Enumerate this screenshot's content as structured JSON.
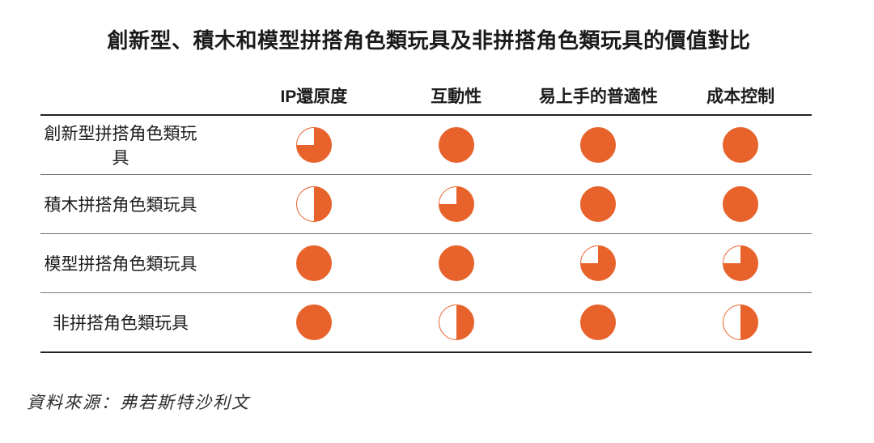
{
  "chart_data": {
    "type": "table",
    "title": "創新型、積木和模型拼搭角色類玩具及非拼搭角色類玩具的價值對比",
    "columns": [
      "IP還原度",
      "互動性",
      "易上手的普適性",
      "成本控制"
    ],
    "rows": [
      {
        "label": "創新型拼搭角色類玩具",
        "values": [
          0.75,
          1,
          1,
          1
        ]
      },
      {
        "label": "積木拼搭角色類玩具",
        "values": [
          0.5,
          0.75,
          1,
          1
        ]
      },
      {
        "label": "模型拼搭角色類玩具",
        "values": [
          1,
          1,
          0.75,
          0.75
        ]
      },
      {
        "label": "非拼搭角色類玩具",
        "values": [
          1,
          0.5,
          1,
          0.5
        ]
      }
    ],
    "value_encoding": "fraction of circle filled, clockwise from top (Harvey ball)",
    "source": "資料來源：弗若斯特沙利文"
  },
  "colors": {
    "accent": "#E8632C",
    "title_text": "#1B1B1B",
    "thin_rule": "#777777",
    "thick_rule": "#222222"
  }
}
